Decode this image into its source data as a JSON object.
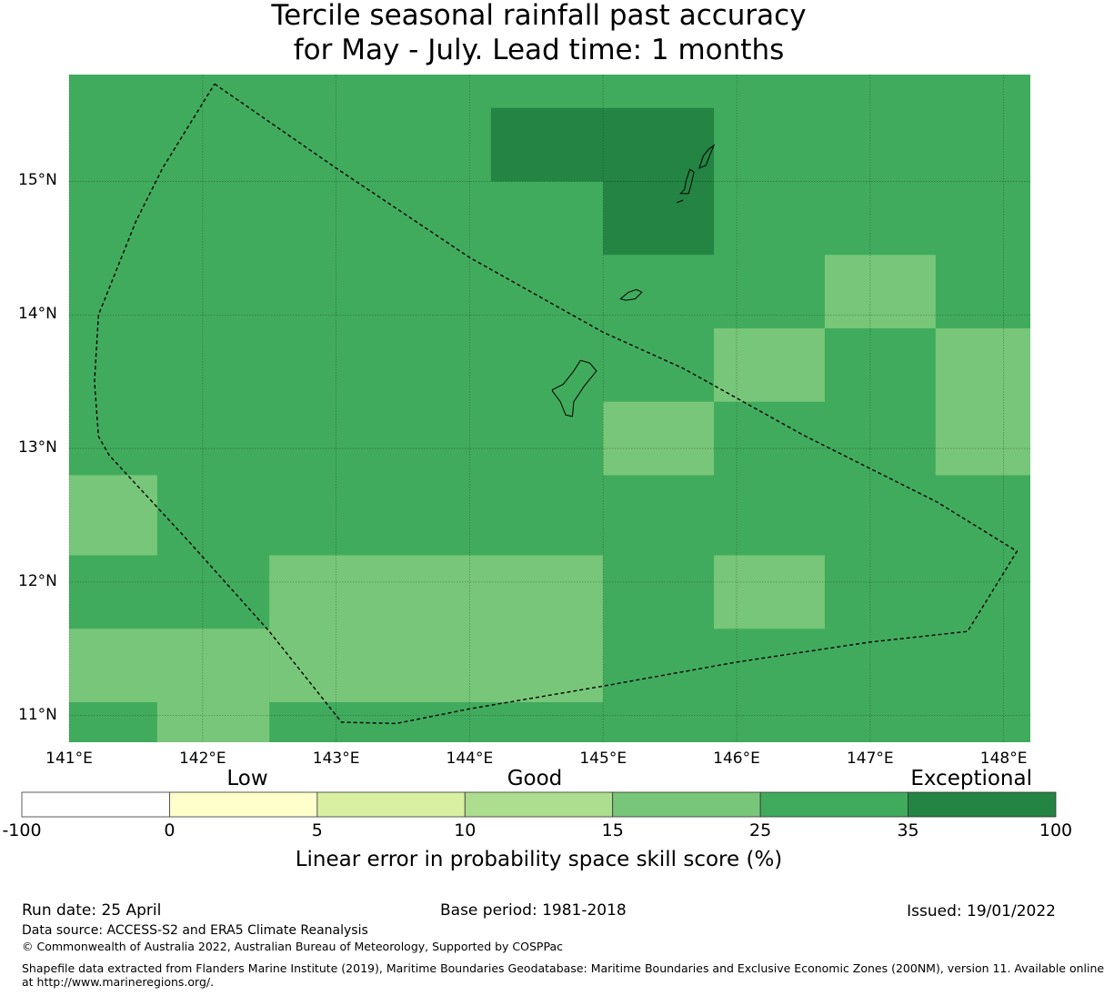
{
  "title_line1": "Tercile seasonal rainfall past accuracy",
  "title_line2": "for May - July. Lead time: 1 months",
  "map": {
    "lon_range": [
      141.0,
      148.2
    ],
    "lat_range": [
      10.8,
      15.8
    ],
    "lat_ticks": [
      {
        "value": 15,
        "label": "15°N"
      },
      {
        "value": 14,
        "label": "14°N"
      },
      {
        "value": 13,
        "label": "13°N"
      },
      {
        "value": 12,
        "label": "12°N"
      },
      {
        "value": 11,
        "label": "11°N"
      }
    ],
    "lon_ticks": [
      {
        "value": 141,
        "label": "141°E"
      },
      {
        "value": 142,
        "label": "142°E"
      },
      {
        "value": 143,
        "label": "143°E"
      },
      {
        "value": 144,
        "label": "144°E"
      },
      {
        "value": 145,
        "label": "145°E"
      },
      {
        "value": 146,
        "label": "146°E"
      },
      {
        "value": 147,
        "label": "147°E"
      },
      {
        "value": 148,
        "label": "148°E"
      }
    ],
    "background_class": 5,
    "cells": [
      {
        "lon": [
          144.16,
          145.0
        ],
        "lat": [
          15.0,
          15.55
        ],
        "class": 6
      },
      {
        "lon": [
          145.0,
          145.83
        ],
        "lat": [
          14.45,
          15.55
        ],
        "class": 6
      },
      {
        "lon": [
          146.66,
          147.49
        ],
        "lat": [
          13.9,
          14.45
        ],
        "class": 4
      },
      {
        "lon": [
          145.83,
          146.66
        ],
        "lat": [
          13.35,
          13.9
        ],
        "class": 4
      },
      {
        "lon": [
          147.49,
          148.2
        ],
        "lat": [
          12.8,
          13.9
        ],
        "class": 4
      },
      {
        "lon": [
          145.0,
          145.83
        ],
        "lat": [
          12.8,
          13.35
        ],
        "class": 4
      },
      {
        "lon": [
          141.0,
          141.66
        ],
        "lat": [
          12.2,
          12.8
        ],
        "class": 4
      },
      {
        "lon": [
          142.5,
          145.0
        ],
        "lat": [
          11.1,
          12.2
        ],
        "class": 4
      },
      {
        "lon": [
          145.83,
          146.66
        ],
        "lat": [
          11.65,
          12.2
        ],
        "class": 4
      },
      {
        "lon": [
          141.0,
          142.5
        ],
        "lat": [
          11.1,
          11.65
        ],
        "class": 4
      },
      {
        "lon": [
          141.66,
          142.5
        ],
        "lat": [
          10.8,
          11.1
        ],
        "class": 4
      }
    ],
    "eez_boundary": [
      [
        142.09,
        15.73
      ],
      [
        143.0,
        15.1
      ],
      [
        144.0,
        14.43
      ],
      [
        145.0,
        13.87
      ],
      [
        145.6,
        13.6
      ],
      [
        146.5,
        13.1
      ],
      [
        147.5,
        12.6
      ],
      [
        148.1,
        12.23
      ],
      [
        147.73,
        11.63
      ],
      [
        147.0,
        11.55
      ],
      [
        146.0,
        11.4
      ],
      [
        145.0,
        11.22
      ],
      [
        144.0,
        11.05
      ],
      [
        143.45,
        10.94
      ],
      [
        143.04,
        10.95
      ],
      [
        142.5,
        11.63
      ],
      [
        141.9,
        12.3
      ],
      [
        141.3,
        12.95
      ],
      [
        141.22,
        13.09
      ],
      [
        141.19,
        13.5
      ],
      [
        141.22,
        14.0
      ],
      [
        141.5,
        14.7
      ],
      [
        141.7,
        15.1
      ],
      [
        142.09,
        15.73
      ]
    ],
    "islands": [
      [
        [
          144.62,
          13.43
        ],
        [
          144.68,
          13.35
        ],
        [
          144.72,
          13.25
        ],
        [
          144.77,
          13.24
        ],
        [
          144.78,
          13.35
        ],
        [
          144.86,
          13.47
        ],
        [
          144.95,
          13.58
        ],
        [
          144.9,
          13.64
        ],
        [
          144.83,
          13.66
        ],
        [
          144.78,
          13.58
        ],
        [
          144.7,
          13.48
        ],
        [
          144.62,
          13.44
        ]
      ],
      [
        [
          145.13,
          14.12
        ],
        [
          145.19,
          14.17
        ],
        [
          145.25,
          14.19
        ],
        [
          145.29,
          14.17
        ],
        [
          145.24,
          14.12
        ],
        [
          145.17,
          14.11
        ],
        [
          145.13,
          14.12
        ]
      ],
      [
        [
          145.58,
          14.91
        ],
        [
          145.61,
          14.94
        ],
        [
          145.62,
          15.0
        ],
        [
          145.65,
          15.09
        ],
        [
          145.68,
          15.07
        ],
        [
          145.66,
          14.98
        ],
        [
          145.64,
          14.91
        ],
        [
          145.58,
          14.91
        ]
      ],
      [
        [
          145.72,
          15.1
        ],
        [
          145.75,
          15.19
        ],
        [
          145.79,
          15.24
        ],
        [
          145.83,
          15.27
        ],
        [
          145.8,
          15.2
        ],
        [
          145.77,
          15.12
        ],
        [
          145.72,
          15.1
        ]
      ],
      [
        [
          145.55,
          14.84
        ],
        [
          145.6,
          14.86
        ]
      ]
    ]
  },
  "legend": {
    "categories": [
      "Low",
      "Good",
      "Exceptional"
    ],
    "bins": [
      {
        "from": -100,
        "to": 0,
        "color": "#ffffff"
      },
      {
        "from": 0,
        "to": 5,
        "color": "#ffffcc"
      },
      {
        "from": 5,
        "to": 10,
        "color": "#d9f0a3"
      },
      {
        "from": 10,
        "to": 15,
        "color": "#addd8e"
      },
      {
        "from": 15,
        "to": 25,
        "color": "#78c679"
      },
      {
        "from": 25,
        "to": 35,
        "color": "#41ab5d"
      },
      {
        "from": 35,
        "to": 100,
        "color": "#238443"
      }
    ],
    "tick_labels": [
      "-100",
      "0",
      "5",
      "10",
      "15",
      "25",
      "35",
      "100"
    ],
    "label": "Linear error in probability space skill score (%)"
  },
  "footer": {
    "run_date": "Run date: 25 April",
    "base_period": "Base period: 1981-2018",
    "issued": "Issued: 19/01/2022",
    "data_source": "Data source: ACCESS-S2 and ERA5 Climate Reanalysis",
    "copyright": "© Commonwealth of Australia 2022, Australian Bureau of Meteorology, Supported by COSPPac",
    "shapefile_line1": "Shapefile data extracted from Flanders Marine Institute (2019), Maritime Boundaries Geodatabase: Maritime Boundaries and Exclusive Economic Zones (200NM), version 11. Available online",
    "shapefile_line2": "at http://www.marineregions.org/."
  }
}
